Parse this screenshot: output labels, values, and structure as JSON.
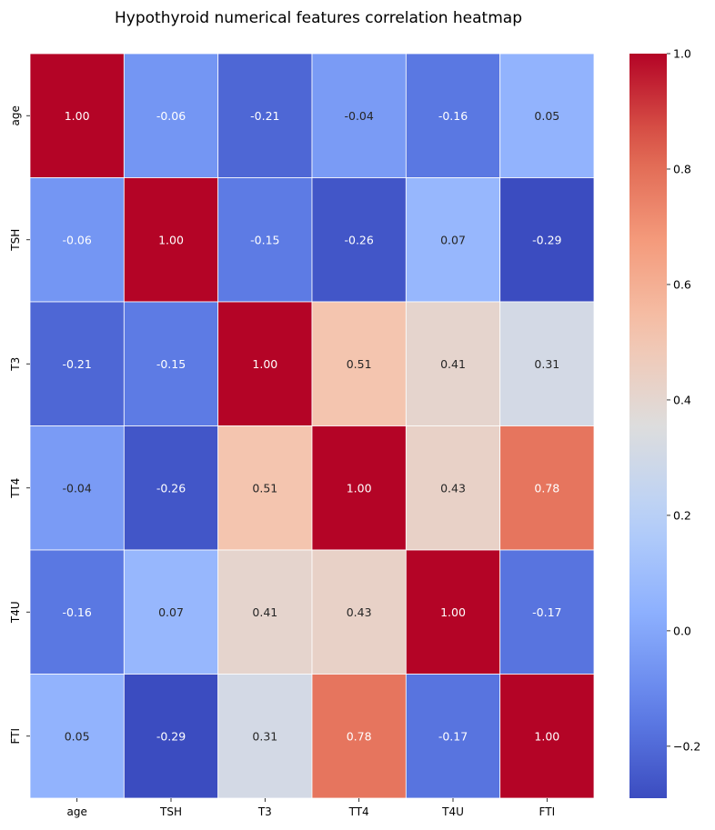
{
  "chart_data": {
    "type": "heatmap",
    "title": "Hypothyroid numerical features correlation heatmap",
    "xlabel": "",
    "ylabel": "",
    "x_categories": [
      "age",
      "TSH",
      "T3",
      "TT4",
      "T4U",
      "FTI"
    ],
    "y_categories": [
      "age",
      "TSH",
      "T3",
      "TT4",
      "T4U",
      "FTI"
    ],
    "values": [
      [
        1.0,
        -0.06,
        -0.21,
        -0.04,
        -0.16,
        0.05
      ],
      [
        -0.06,
        1.0,
        -0.15,
        -0.26,
        0.07,
        -0.29
      ],
      [
        -0.21,
        -0.15,
        1.0,
        0.51,
        0.41,
        0.31
      ],
      [
        -0.04,
        -0.26,
        0.51,
        1.0,
        0.43,
        0.78
      ],
      [
        -0.16,
        0.07,
        0.41,
        0.43,
        1.0,
        -0.17
      ],
      [
        0.05,
        -0.29,
        0.31,
        0.78,
        -0.17,
        1.0
      ]
    ],
    "value_format": "2 decimals",
    "colormap": "coolwarm",
    "color_range": [
      -0.29,
      1.0
    ],
    "colorbar_ticks": [
      {
        "value": -0.2,
        "label": "−0.2"
      },
      {
        "value": 0.0,
        "label": "0.0"
      },
      {
        "value": 0.2,
        "label": "0.2"
      },
      {
        "value": 0.4,
        "label": "0.4"
      },
      {
        "value": 0.6,
        "label": "0.6"
      },
      {
        "value": 0.8,
        "label": "0.8"
      },
      {
        "value": 1.0,
        "label": "1.0"
      }
    ],
    "grid": true,
    "legend": "colorbar-right"
  }
}
